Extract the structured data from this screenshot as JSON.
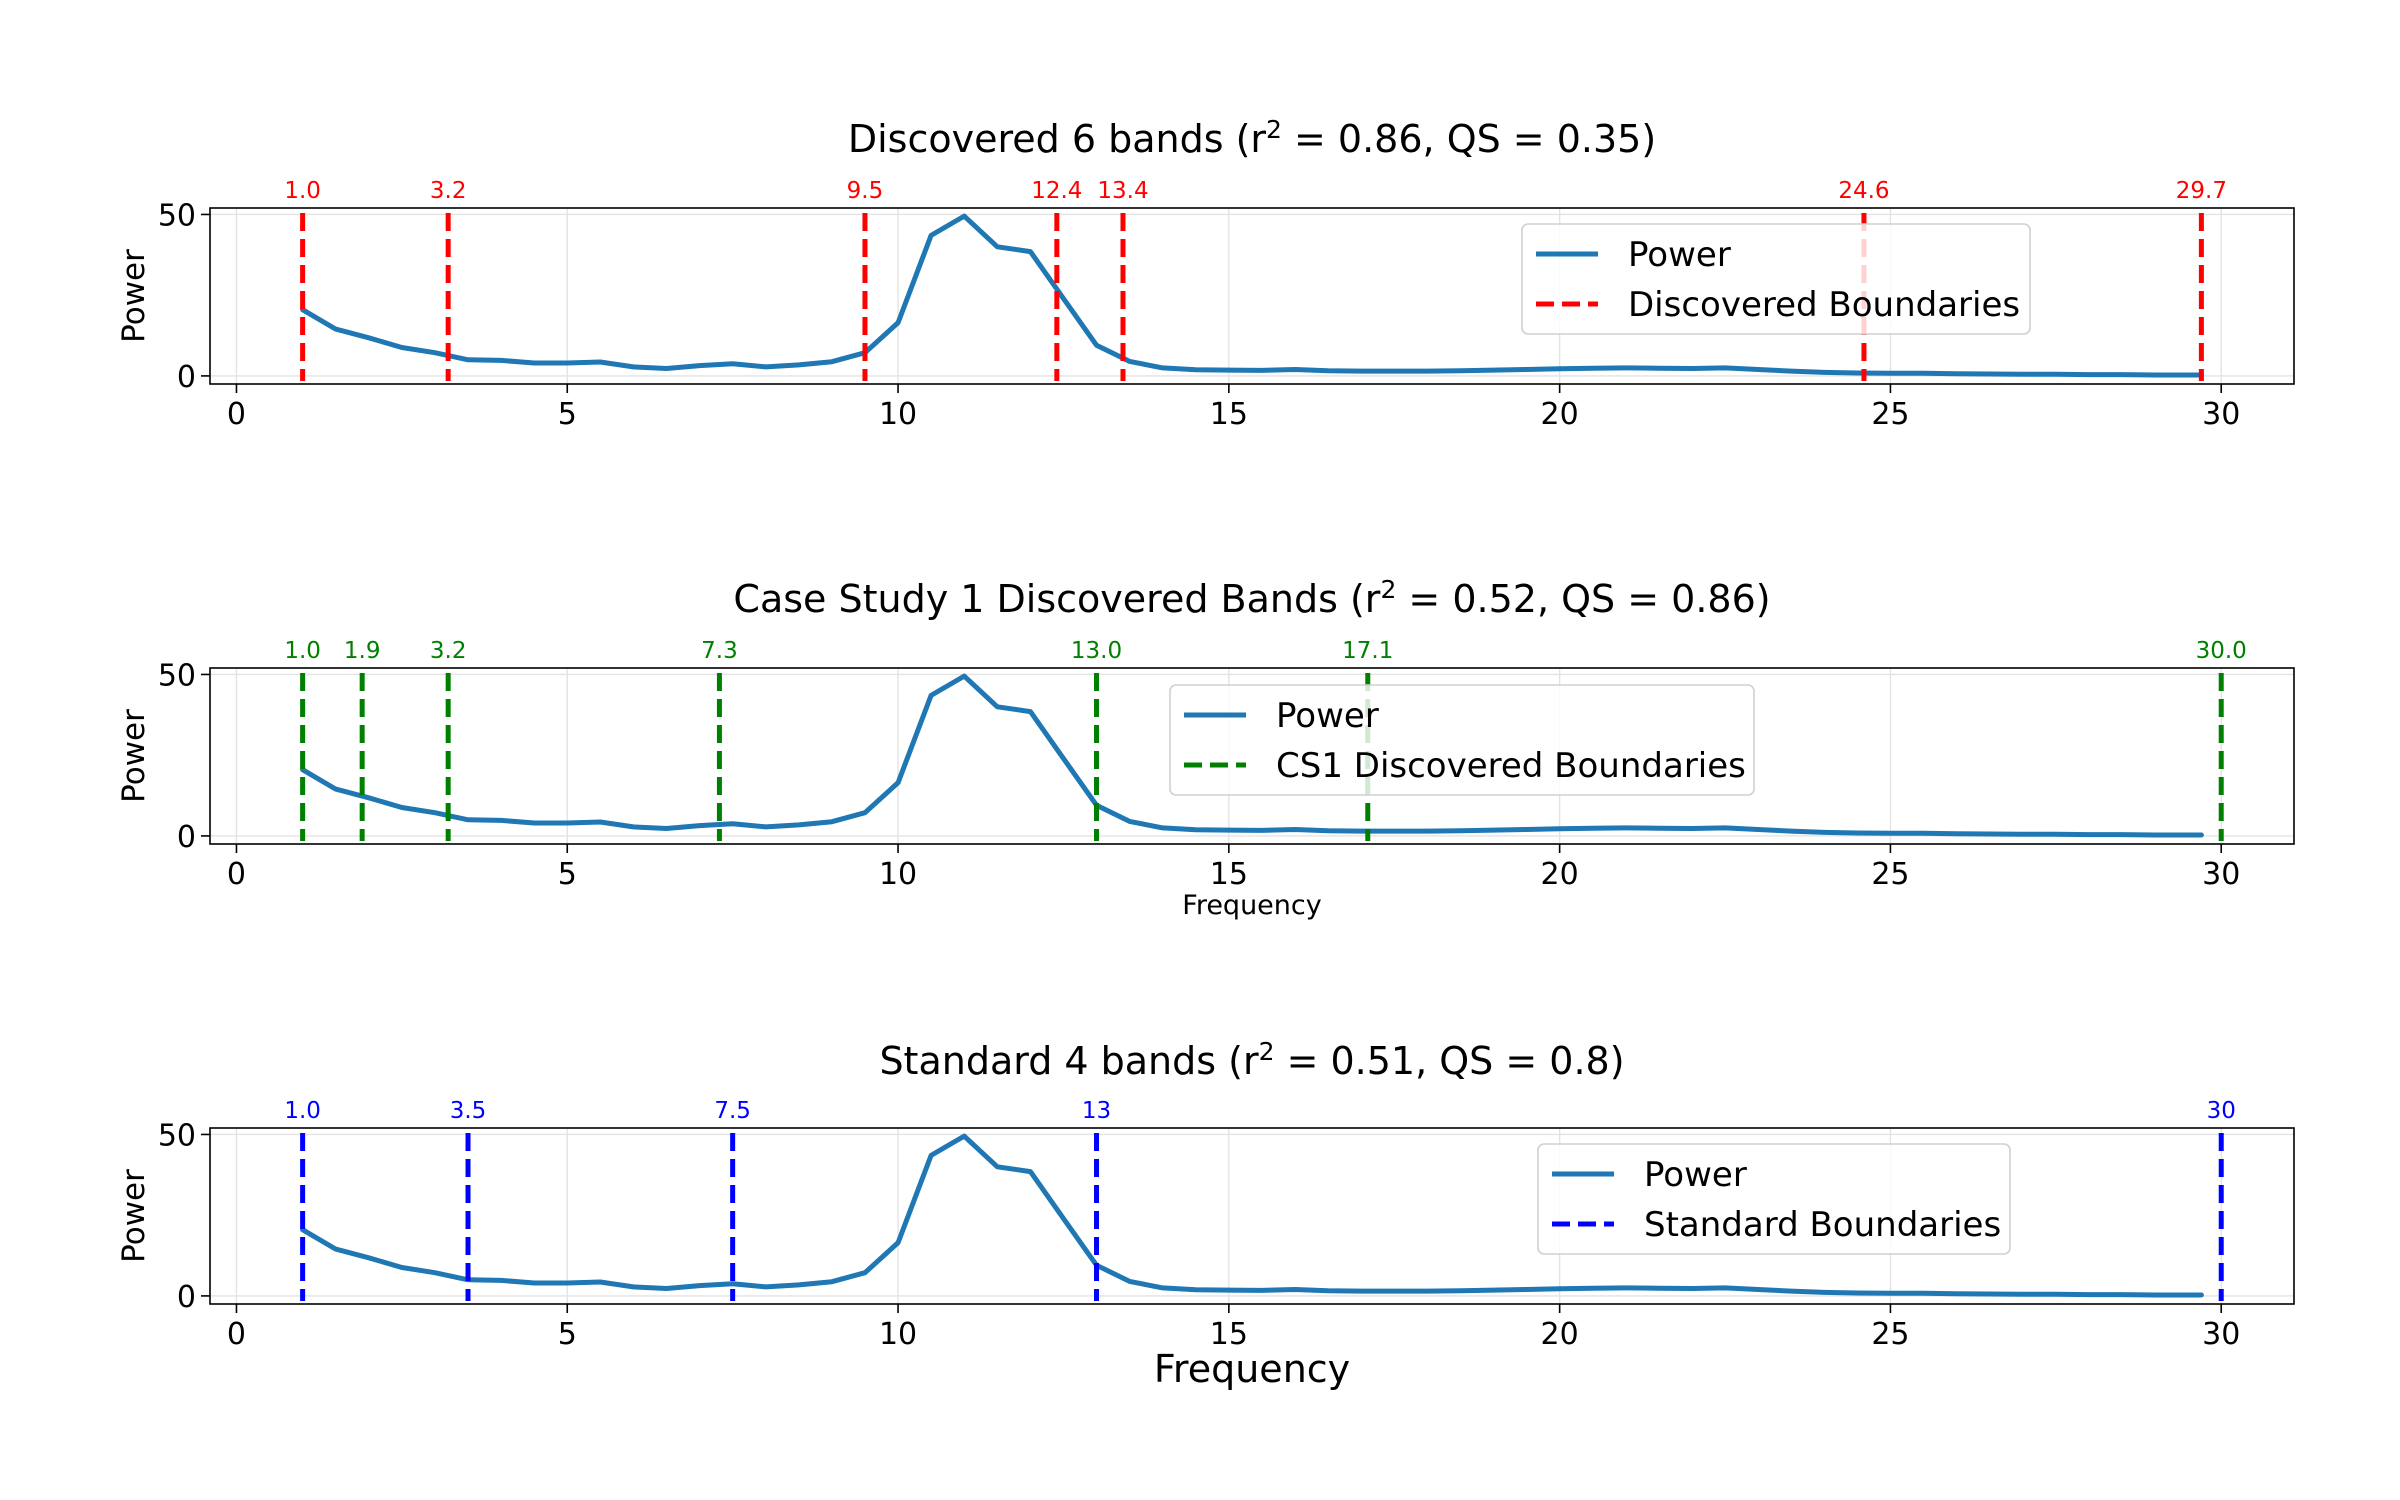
{
  "power_curve": {
    "name": "Power",
    "color": "#1f77b4",
    "x": [
      1.0,
      1.5,
      2.0,
      2.5,
      3.0,
      3.5,
      4.0,
      4.5,
      5.0,
      5.5,
      6.0,
      6.5,
      7.0,
      7.5,
      8.0,
      8.5,
      9.0,
      9.5,
      10.0,
      10.5,
      11.0,
      11.5,
      12.0,
      12.5,
      13.0,
      13.5,
      14.0,
      14.5,
      15.0,
      15.5,
      16.0,
      16.5,
      17.0,
      17.5,
      18.0,
      18.5,
      19.0,
      19.5,
      20.0,
      20.5,
      21.0,
      21.5,
      22.0,
      22.5,
      23.0,
      23.5,
      24.0,
      24.5,
      25.0,
      25.5,
      26.0,
      26.5,
      27.0,
      27.5,
      28.0,
      28.5,
      29.0,
      29.5,
      29.7
    ],
    "y": [
      20.5,
      14.5,
      11.8,
      8.8,
      7.2,
      5.0,
      4.8,
      4.0,
      4.0,
      4.3,
      2.8,
      2.3,
      3.2,
      3.8,
      2.8,
      3.4,
      4.4,
      7.2,
      16.5,
      43.5,
      49.5,
      40.0,
      38.5,
      24.0,
      9.5,
      4.5,
      2.5,
      1.9,
      1.8,
      1.7,
      2.0,
      1.6,
      1.5,
      1.5,
      1.5,
      1.6,
      1.8,
      2.0,
      2.2,
      2.4,
      2.5,
      2.4,
      2.3,
      2.5,
      2.0,
      1.5,
      1.1,
      0.9,
      0.8,
      0.8,
      0.7,
      0.6,
      0.5,
      0.5,
      0.4,
      0.4,
      0.3,
      0.3,
      0.3
    ]
  },
  "chart_data": [
    {
      "type": "line",
      "title_pre": "Discovered 6 bands (r",
      "title_sup": "2",
      "title_post": " = 0.86, QS = 0.35)",
      "ylabel": "Power",
      "xlabel": "",
      "xlim": [
        -0.4,
        31.1
      ],
      "ylim": [
        -2.5,
        52
      ],
      "xticks": [
        "0",
        "5",
        "10",
        "15",
        "20",
        "25",
        "30"
      ],
      "yticks": [
        "0",
        "50"
      ],
      "series": [
        {
          "name": "Power",
          "values_ref": "power_curve"
        },
        {
          "name": "Discovered Boundaries",
          "color": "#ff0000",
          "boundaries": [
            1.0,
            3.2,
            9.5,
            12.4,
            13.4,
            24.6,
            29.7
          ]
        }
      ],
      "boundary_labels": [
        "1.0",
        "3.2",
        "9.5",
        "12.4",
        "13.4",
        "24.6",
        "29.7"
      ],
      "legend": {
        "position": "upper right",
        "items": [
          "Power",
          "Discovered Boundaries"
        ]
      },
      "grid": true
    },
    {
      "type": "line",
      "title_pre": "Case Study 1 Discovered Bands (r",
      "title_sup": "2",
      "title_post": " = 0.52, QS = 0.86)",
      "ylabel": "Power",
      "xlabel": "Frequency",
      "xlim": [
        -0.4,
        31.1
      ],
      "ylim": [
        -2.5,
        52
      ],
      "xticks": [
        "0",
        "5",
        "10",
        "15",
        "20",
        "25",
        "30"
      ],
      "yticks": [
        "0",
        "50"
      ],
      "series": [
        {
          "name": "Power",
          "values_ref": "power_curve"
        },
        {
          "name": "CS1 Discovered Boundaries",
          "color": "#008000",
          "boundaries": [
            1.0,
            1.9,
            3.2,
            7.3,
            13.0,
            17.1,
            30.0
          ]
        }
      ],
      "boundary_labels": [
        "1.0",
        "1.9",
        "3.2",
        "7.3",
        "13.0",
        "17.1",
        "30.0"
      ],
      "legend": {
        "position": "upper center",
        "items": [
          "Power",
          "CS1 Discovered Boundaries"
        ]
      },
      "grid": true
    },
    {
      "type": "line",
      "title_pre": "Standard 4 bands (r",
      "title_sup": "2",
      "title_post": " = 0.51, QS = 0.8)",
      "ylabel": "Power",
      "xlabel": "Frequency",
      "xlim": [
        -0.4,
        31.1
      ],
      "ylim": [
        -2.5,
        52
      ],
      "xticks": [
        "0",
        "5",
        "10",
        "15",
        "20",
        "25",
        "30"
      ],
      "yticks": [
        "0",
        "50"
      ],
      "series": [
        {
          "name": "Power",
          "values_ref": "power_curve"
        },
        {
          "name": "Standard Boundaries",
          "color": "#0000ff",
          "boundaries": [
            1.0,
            3.5,
            7.5,
            13.0,
            30.0
          ]
        }
      ],
      "boundary_labels": [
        "1.0",
        "3.5",
        "7.5",
        "13",
        "30"
      ],
      "legend": {
        "position": "upper right",
        "items": [
          "Power",
          "Standard Boundaries"
        ]
      },
      "grid": true
    }
  ]
}
